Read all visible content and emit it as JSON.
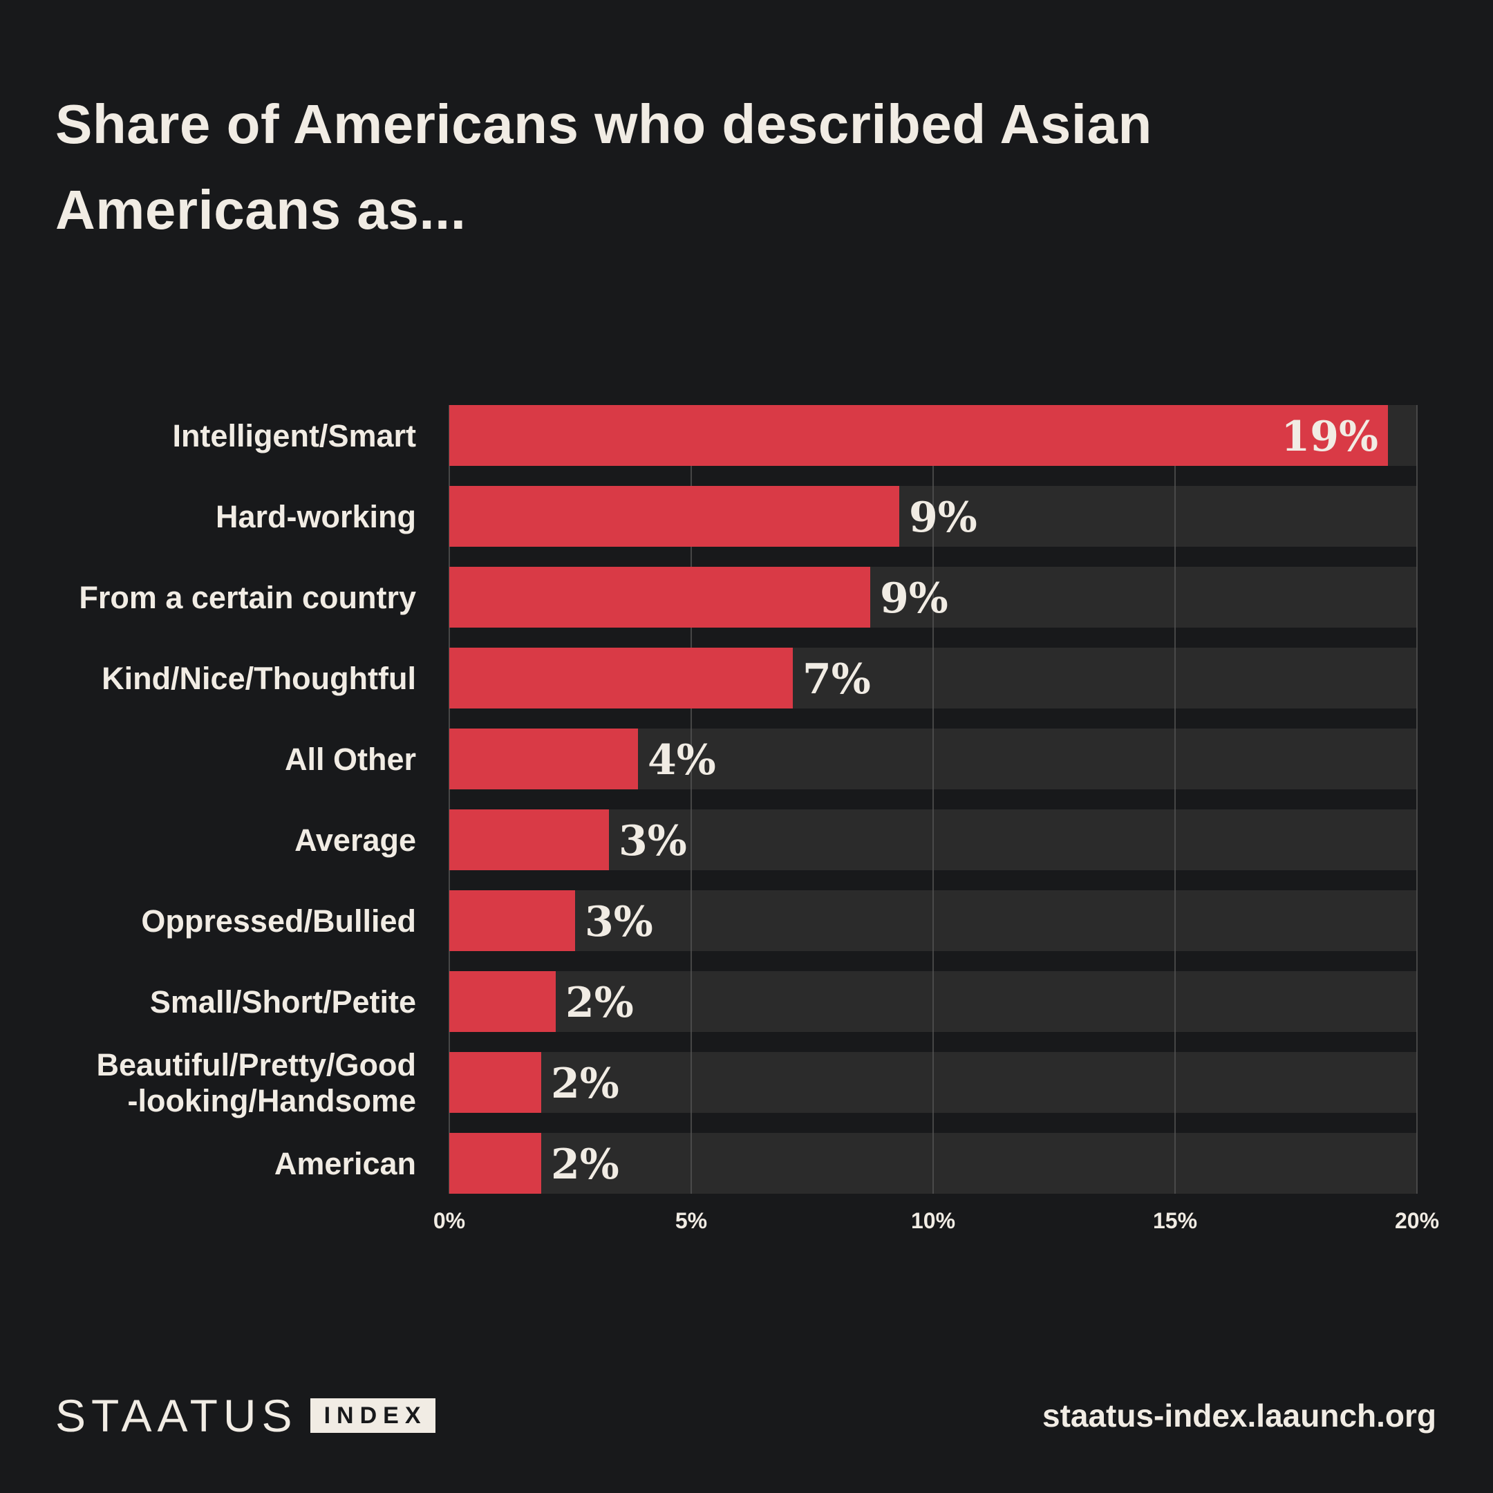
{
  "title": "Share of Americans who described Asian Americans as...",
  "colors": {
    "background": "#18191b",
    "bar": "#d93a46",
    "track": "#2b2b2b",
    "grid": "#555555",
    "text": "#f1ece4"
  },
  "footer": {
    "logo_word": "STAATUS",
    "logo_box": "INDEX",
    "url": "staatus-index.laaunch.org"
  },
  "chart_data": {
    "type": "bar",
    "orientation": "horizontal",
    "categories": [
      "Intelligent/Smart",
      "Hard-working",
      "From a certain country",
      "Kind/Nice/Thoughtful",
      "All Other",
      "Average",
      "Oppressed/Bullied",
      "Small/Short/Petite",
      "Beautiful/Pretty/Good\n-looking/Handsome",
      "American"
    ],
    "values": [
      19.4,
      9.3,
      8.7,
      7.1,
      3.9,
      3.3,
      2.6,
      2.2,
      1.9,
      1.9
    ],
    "value_labels": [
      "19%",
      "9%",
      "9%",
      "7%",
      "4%",
      "3%",
      "3%",
      "2%",
      "2%",
      "2%"
    ],
    "xlim": [
      0,
      20
    ],
    "xticks": [
      0,
      5,
      10,
      15,
      20
    ],
    "xtick_labels": [
      "0%",
      "5%",
      "10%",
      "15%",
      "20%"
    ],
    "grid": true,
    "legend": "none"
  }
}
